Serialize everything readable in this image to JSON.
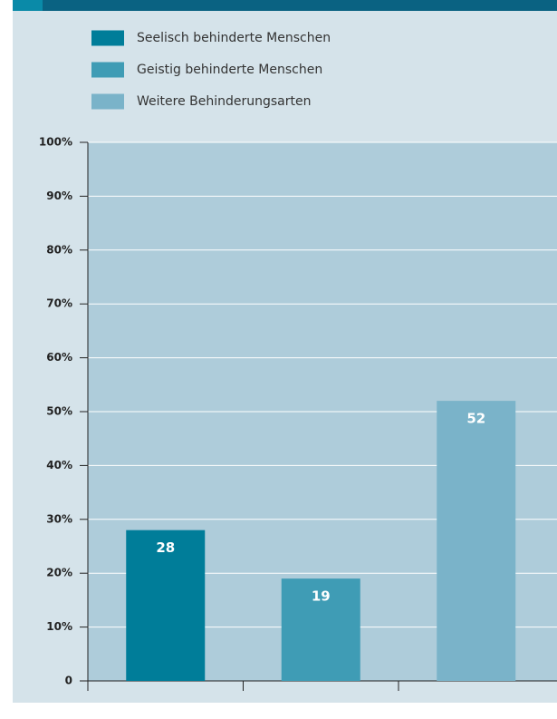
{
  "chart_data": {
    "type": "bar",
    "categories": [
      null,
      null,
      null
    ],
    "series": [
      {
        "name": "Seelisch behinderte Menschen",
        "color": "#007d99",
        "values": [
          28,
          null,
          null
        ]
      },
      {
        "name": "Geistig behinderte Menschen",
        "color": "#3f9cb5",
        "values": [
          null,
          19,
          null
        ]
      },
      {
        "name": "Weitere Behinderungsarten",
        "color": "#7ab3c9",
        "values": [
          null,
          null,
          52
        ]
      }
    ],
    "ylim": [
      0,
      100
    ],
    "yticks": [
      0,
      {
        "value": 10,
        "label": "10%"
      },
      {
        "value": 20,
        "label": "20%"
      },
      {
        "value": 30,
        "label": "30%"
      },
      {
        "value": 40,
        "label": "40%"
      },
      {
        "value": 50,
        "label": "50%"
      },
      {
        "value": 60,
        "label": "60%"
      },
      {
        "value": 70,
        "label": "70%"
      },
      {
        "value": 80,
        "label": "80%"
      },
      {
        "value": 90,
        "label": "90%"
      },
      {
        "value": 100,
        "label": "100%"
      }
    ],
    "grid": true
  }
}
